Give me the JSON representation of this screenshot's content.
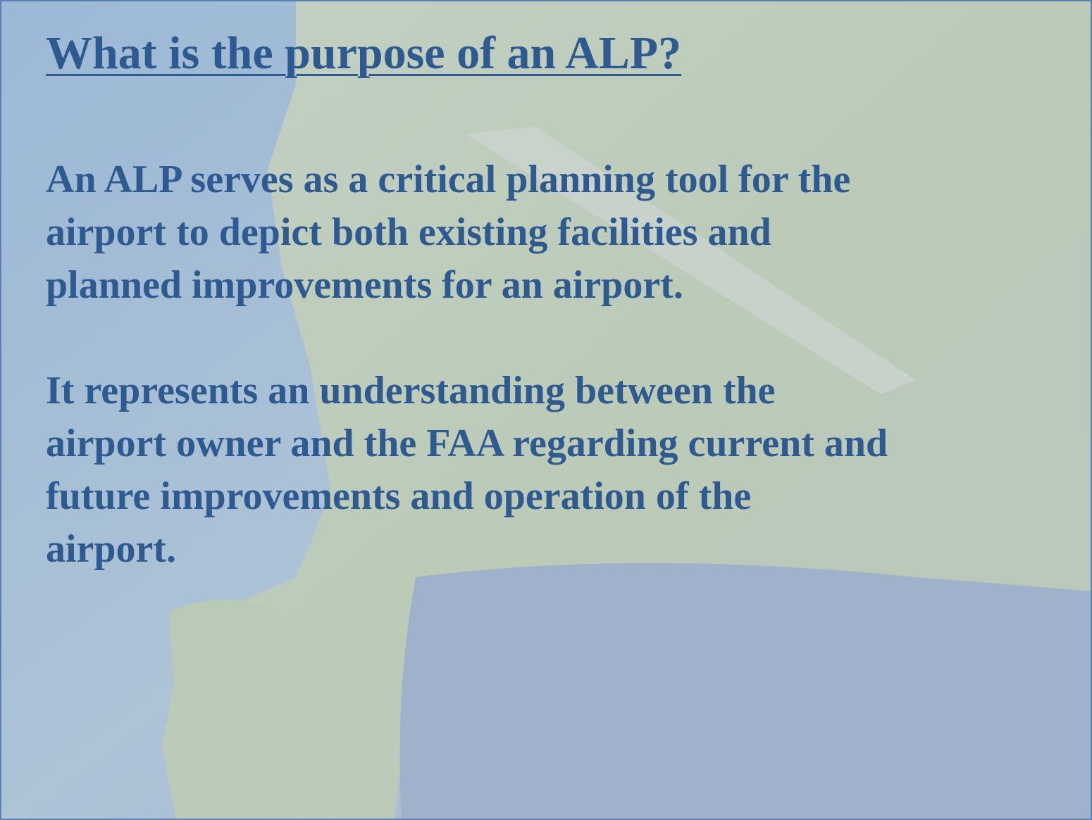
{
  "slide": {
    "title": "What is the purpose of an ALP?",
    "paragraphs": [
      [
        "An ALP serves as a critical planning tool for the",
        "airport to depict both existing facilities and",
        "planned improvements for an airport."
      ],
      [
        "It represents an understanding between the",
        "airport owner and the FAA regarding current and",
        "future improvements and operation of the",
        "airport."
      ]
    ]
  }
}
